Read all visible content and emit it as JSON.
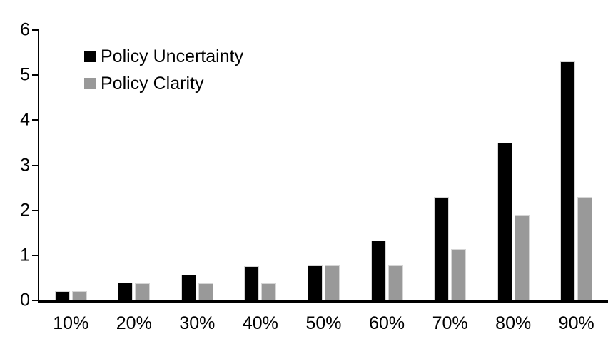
{
  "chart_data": {
    "type": "bar",
    "title": "",
    "xlabel": "",
    "ylabel": "",
    "categories": [
      "10%",
      "20%",
      "30%",
      "40%",
      "50%",
      "60%",
      "70%",
      "80%",
      "90%"
    ],
    "series": [
      {
        "name": "Policy Uncertainty",
        "color": "#000000",
        "values": [
          0.2,
          0.4,
          0.57,
          0.76,
          0.78,
          1.33,
          2.3,
          3.5,
          5.3
        ]
      },
      {
        "name": "Policy Clarity",
        "color": "#999999",
        "values": [
          0.2,
          0.38,
          0.38,
          0.38,
          0.77,
          0.77,
          1.14,
          1.9,
          2.3
        ]
      }
    ],
    "ylim": [
      0,
      6
    ],
    "yticks": [
      0,
      1,
      2,
      3,
      4,
      5,
      6
    ],
    "grid": false,
    "legend_position": "top-left-inside",
    "axis_color": "#000000",
    "bar_border_color": "#d6d6d6",
    "background_color": "#ffffff"
  }
}
